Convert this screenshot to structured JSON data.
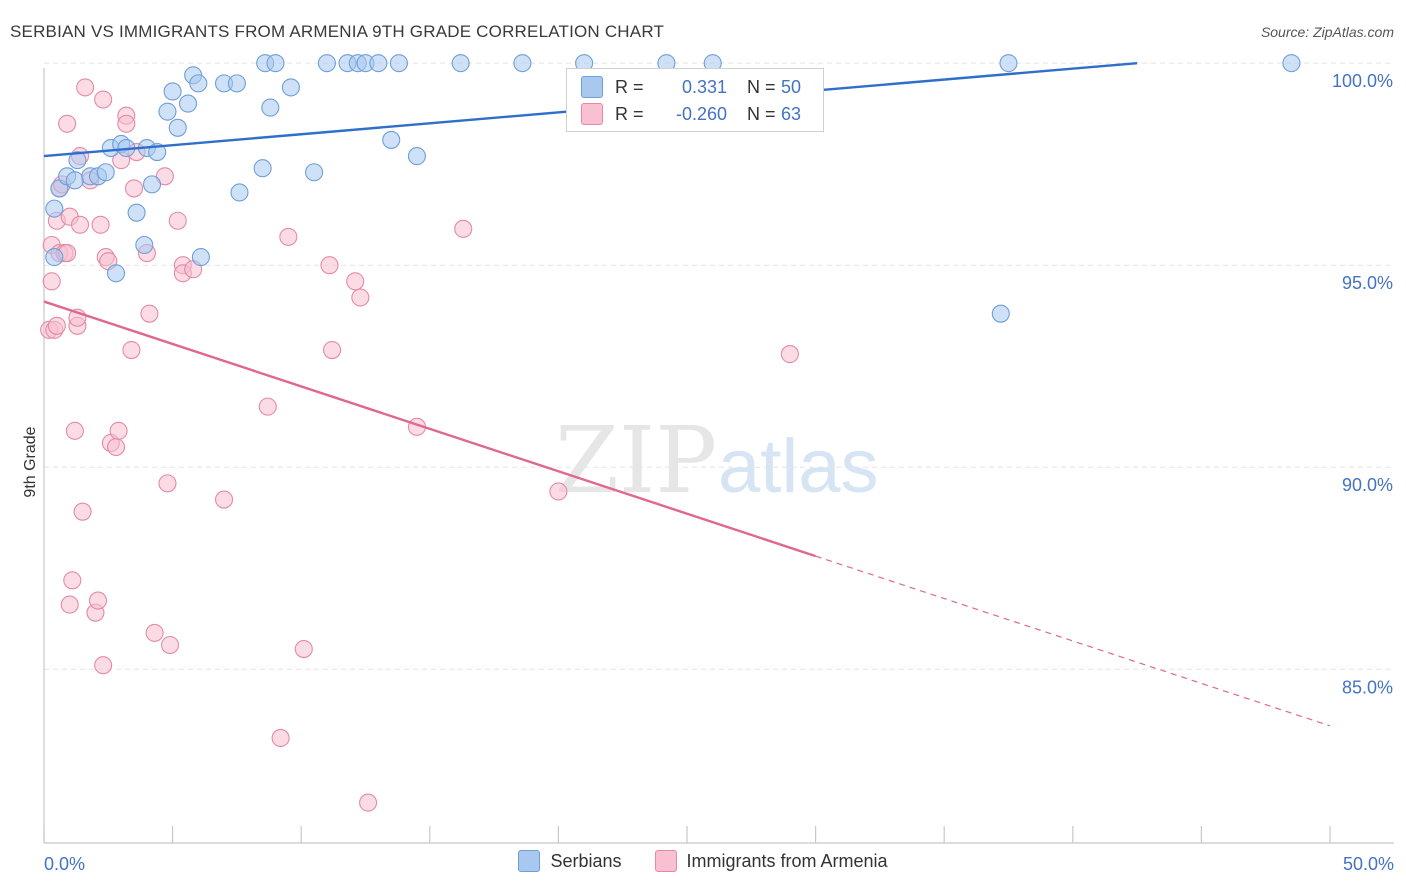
{
  "title": "SERBIAN VS IMMIGRANTS FROM ARMENIA 9TH GRADE CORRELATION CHART",
  "source": "Source: ZipAtlas.com",
  "watermark": {
    "bold": "ZIP",
    "light": "atlas"
  },
  "stats": [
    {
      "r_label": "R =",
      "r_value": "0.331",
      "n_label": "N =",
      "n_value": "50",
      "color": "#a8c8f0",
      "border": "#6f9fd8"
    },
    {
      "r_label": "R =",
      "r_value": "-0.260",
      "n_label": "N =",
      "n_value": "63",
      "color": "#f8c0d0",
      "border": "#e48aa8"
    }
  ],
  "legend": [
    {
      "label": "Serbians",
      "color": "#a8c8f0",
      "border": "#6f9fd8"
    },
    {
      "label": "Immigrants from Armenia",
      "color": "#f8c0d0",
      "border": "#e48aa8"
    }
  ],
  "chart_data": {
    "type": "scatter",
    "title": "SERBIAN VS IMMIGRANTS FROM ARMENIA 9TH GRADE CORRELATION CHART",
    "xlabel": "",
    "ylabel": "9th Grade",
    "xlim": [
      0,
      50
    ],
    "ylim": [
      80.7,
      100.4
    ],
    "x_tick_labels": [
      "0.0%",
      "50.0%"
    ],
    "y_ticks": [
      85,
      90,
      95,
      100
    ],
    "y_tick_labels": [
      "85.0%",
      "90.0%",
      "95.0%",
      "100.0%"
    ],
    "grid": true,
    "legend_position": "bottom",
    "series": [
      {
        "name": "Serbians",
        "color": "#6f9fd8",
        "fill": "#a8c8f0",
        "line_color": "#2e6fcc",
        "trend": {
          "x": [
            0,
            42.5
          ],
          "y": [
            97.7,
            100.0
          ]
        },
        "points": [
          [
            0.4,
            95.2
          ],
          [
            0.4,
            96.4
          ],
          [
            0.6,
            96.9
          ],
          [
            0.9,
            97.2
          ],
          [
            1.2,
            97.1
          ],
          [
            1.3,
            97.6
          ],
          [
            1.8,
            97.2
          ],
          [
            2.1,
            97.2
          ],
          [
            2.4,
            97.3
          ],
          [
            2.6,
            97.9
          ],
          [
            3.0,
            98.0
          ],
          [
            3.2,
            97.9
          ],
          [
            2.8,
            94.8
          ],
          [
            3.6,
            96.3
          ],
          [
            3.9,
            95.5
          ],
          [
            4.0,
            97.9
          ],
          [
            4.2,
            97.0
          ],
          [
            4.4,
            97.8
          ],
          [
            4.8,
            98.8
          ],
          [
            5.0,
            99.3
          ],
          [
            5.2,
            98.4
          ],
          [
            5.6,
            99.0
          ],
          [
            5.8,
            99.7
          ],
          [
            6.0,
            99.5
          ],
          [
            6.1,
            95.2
          ],
          [
            7.0,
            99.5
          ],
          [
            7.5,
            99.5
          ],
          [
            7.6,
            96.8
          ],
          [
            8.5,
            97.4
          ],
          [
            8.8,
            98.9
          ],
          [
            8.6,
            100.0
          ],
          [
            9.0,
            100.0
          ],
          [
            9.6,
            99.4
          ],
          [
            10.5,
            97.3
          ],
          [
            11.0,
            100.0
          ],
          [
            11.8,
            100.0
          ],
          [
            12.2,
            100.0
          ],
          [
            12.5,
            100.0
          ],
          [
            13.0,
            100.0
          ],
          [
            13.5,
            98.1
          ],
          [
            13.8,
            100.0
          ],
          [
            14.5,
            97.7
          ],
          [
            16.2,
            100.0
          ],
          [
            18.6,
            100.0
          ],
          [
            21.0,
            100.0
          ],
          [
            24.2,
            100.0
          ],
          [
            26.0,
            100.0
          ],
          [
            37.2,
            93.8
          ],
          [
            37.5,
            100.0
          ],
          [
            48.5,
            100.0
          ]
        ]
      },
      {
        "name": "Immigrants from Armenia",
        "color": "#e48aa8",
        "fill": "#f8c0d0",
        "line_color": "#e06890",
        "trend": {
          "x": [
            0,
            30
          ],
          "y": [
            94.1,
            87.8
          ]
        },
        "trend_dashed": {
          "x": [
            30,
            50
          ],
          "y": [
            87.8,
            83.6
          ]
        },
        "points": [
          [
            0.2,
            93.4
          ],
          [
            0.3,
            94.6
          ],
          [
            0.3,
            95.5
          ],
          [
            0.4,
            93.4
          ],
          [
            0.5,
            96.1
          ],
          [
            0.5,
            93.5
          ],
          [
            0.6,
            96.9
          ],
          [
            0.6,
            95.3
          ],
          [
            0.7,
            97.0
          ],
          [
            0.8,
            95.3
          ],
          [
            0.9,
            95.3
          ],
          [
            1.0,
            96.2
          ],
          [
            1.0,
            86.6
          ],
          [
            1.1,
            87.2
          ],
          [
            1.2,
            90.9
          ],
          [
            1.3,
            93.5
          ],
          [
            1.3,
            93.7
          ],
          [
            1.4,
            97.7
          ],
          [
            1.4,
            96.0
          ],
          [
            1.5,
            88.9
          ],
          [
            1.6,
            99.4
          ],
          [
            1.8,
            97.1
          ],
          [
            2.0,
            86.4
          ],
          [
            2.1,
            86.7
          ],
          [
            2.2,
            96.0
          ],
          [
            2.4,
            95.2
          ],
          [
            2.3,
            85.1
          ],
          [
            2.5,
            95.1
          ],
          [
            2.3,
            99.1
          ],
          [
            2.6,
            90.6
          ],
          [
            2.8,
            90.5
          ],
          [
            2.9,
            90.9
          ],
          [
            3.0,
            97.6
          ],
          [
            3.2,
            98.7
          ],
          [
            3.2,
            98.5
          ],
          [
            3.4,
            92.9
          ],
          [
            3.5,
            96.9
          ],
          [
            3.6,
            97.8
          ],
          [
            4.0,
            95.3
          ],
          [
            4.1,
            93.8
          ],
          [
            4.3,
            85.9
          ],
          [
            4.7,
            97.2
          ],
          [
            4.8,
            89.6
          ],
          [
            4.9,
            85.6
          ],
          [
            5.2,
            96.1
          ],
          [
            5.4,
            95.0
          ],
          [
            5.4,
            94.8
          ],
          [
            5.8,
            94.9
          ],
          [
            7.0,
            89.2
          ],
          [
            8.7,
            91.5
          ],
          [
            9.2,
            83.3
          ],
          [
            9.5,
            95.7
          ],
          [
            10.1,
            85.5
          ],
          [
            11.1,
            95.0
          ],
          [
            11.2,
            92.9
          ],
          [
            12.1,
            94.6
          ],
          [
            12.3,
            94.2
          ],
          [
            12.6,
            81.7
          ],
          [
            14.5,
            91.0
          ],
          [
            16.3,
            95.9
          ],
          [
            20.0,
            89.4
          ],
          [
            29.0,
            92.8
          ],
          [
            0.9,
            98.5
          ]
        ]
      }
    ]
  }
}
